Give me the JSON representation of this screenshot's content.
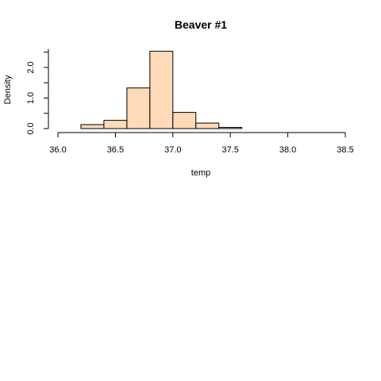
{
  "chart_data": {
    "type": "histogram",
    "title": "Beaver #1",
    "xlabel": "temp",
    "ylabel": "Density",
    "xlim": [
      36.0,
      38.5
    ],
    "ylim": [
      0,
      2.6
    ],
    "x_ticks": [
      36.0,
      36.5,
      37.0,
      37.5,
      38.0,
      38.5
    ],
    "x_tick_labels": [
      "36.0",
      "36.5",
      "37.0",
      "37.5",
      "38.0",
      "38.5"
    ],
    "y_ticks": [
      0.0,
      1.0,
      2.0
    ],
    "y_tick_labels": [
      "0.0",
      "1.0",
      "2.0"
    ],
    "bins": [
      {
        "start": 36.2,
        "end": 36.4,
        "density": 0.13
      },
      {
        "start": 36.4,
        "end": 36.6,
        "density": 0.27
      },
      {
        "start": 36.6,
        "end": 36.8,
        "density": 1.33
      },
      {
        "start": 36.8,
        "end": 37.0,
        "density": 2.53
      },
      {
        "start": 37.0,
        "end": 37.2,
        "density": 0.53
      },
      {
        "start": 37.2,
        "end": 37.4,
        "density": 0.18
      },
      {
        "start": 37.4,
        "end": 37.6,
        "density": 0.04
      }
    ],
    "bar_color": "#FFDAB9",
    "grid": false
  }
}
